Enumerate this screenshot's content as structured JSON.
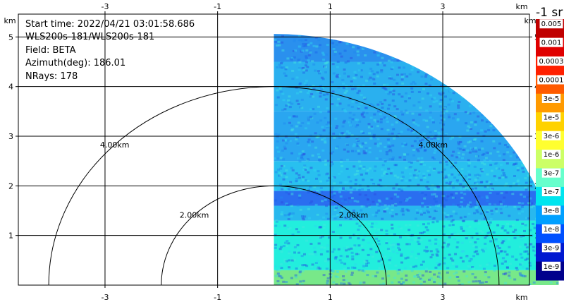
{
  "info": {
    "start_time": "Start time: 2022/04/21 03:01:58.686",
    "instrument": "WLS200s-181/WLS200s-181",
    "field": "Field: BETA",
    "azimuth": "Azimuth(deg): 186.01",
    "nrays": "NRays: 178"
  },
  "colorbar": {
    "title": "-1 sr",
    "labels": [
      "0.005",
      "0.001",
      "0.0003",
      "0.0001",
      "3e-5",
      "1e-5",
      "3e-6",
      "1e-6",
      "3e-7",
      "1e-7",
      "3e-8",
      "1e-8",
      "3e-9",
      "1e-9"
    ],
    "colors": [
      "#c00000",
      "#e00000",
      "#ff2000",
      "#ff5a00",
      "#ff9a00",
      "#ffd200",
      "#ffff30",
      "#ccff66",
      "#66ffcc",
      "#00e5ee",
      "#00a0ff",
      "#0050ff",
      "#0018d0",
      "#00008c"
    ]
  },
  "chart_data": {
    "type": "heatmap",
    "description_field": "BETA",
    "x_unit": "km",
    "y_unit": "km",
    "xlim": [
      -4.54,
      4.54
    ],
    "ylim": [
      0,
      5.46
    ],
    "x_ticks": [
      -3,
      -1,
      1,
      3
    ],
    "y_ticks": [
      1,
      2,
      3,
      4,
      5
    ],
    "range_rings": [
      {
        "radius_km": 2.0,
        "label": "2.00km"
      },
      {
        "radius_km": 4.0,
        "label": "4.00km"
      }
    ],
    "sector": {
      "x_min": 0.0,
      "max_range_km": 5.06,
      "y_max": 5.06
    },
    "bands": [
      {
        "y": [
          0.0,
          0.3
        ],
        "value": "3e-7",
        "color": "#78e889"
      },
      {
        "y": [
          0.3,
          1.3
        ],
        "value": "1e-7",
        "color": "#22eedd"
      },
      {
        "y": [
          1.3,
          1.6
        ],
        "value": "3e-8",
        "color": "#28b8ee"
      },
      {
        "y": [
          1.6,
          1.9
        ],
        "value": "1e-8",
        "color": "#2a6ef0"
      },
      {
        "y": [
          1.9,
          2.5
        ],
        "value": "3e-8",
        "color": "#28c0ef"
      },
      {
        "y": [
          2.5,
          3.5
        ],
        "value": "3e-8",
        "color": "#2aa6f0"
      },
      {
        "y": [
          3.5,
          4.5
        ],
        "value": "3e-8",
        "color": "#2ab0ef"
      },
      {
        "y": [
          4.5,
          5.1
        ],
        "value": "3e-8",
        "color": "#2a90ee"
      }
    ]
  }
}
